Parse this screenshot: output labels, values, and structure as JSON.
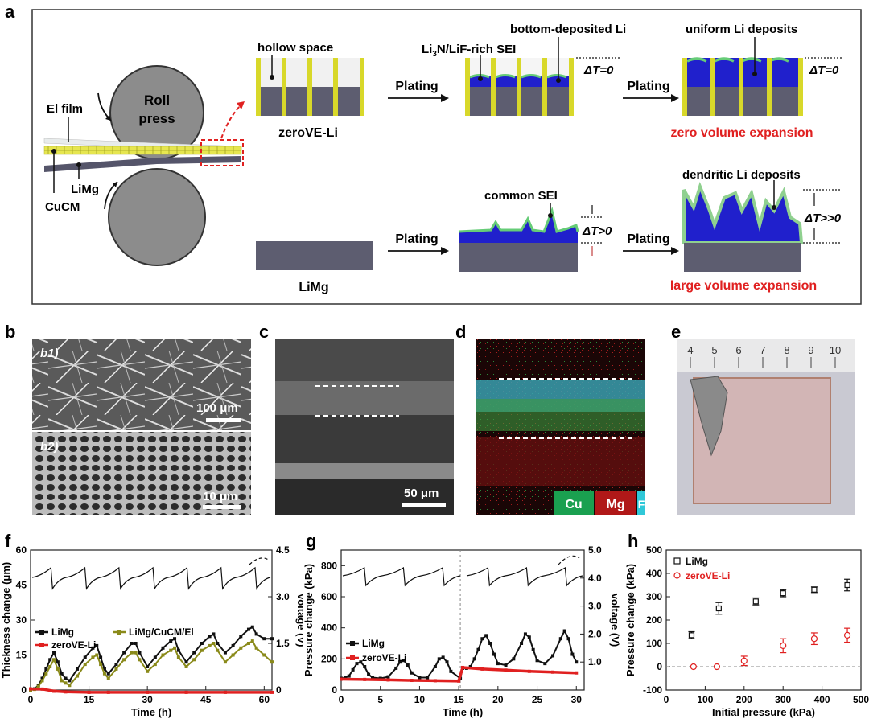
{
  "panel_labels": {
    "a": "a",
    "b": "b",
    "c": "c",
    "d": "d",
    "e": "e",
    "f": "f",
    "g": "g",
    "h": "h"
  },
  "schematic": {
    "roll_press": "Roll",
    "roll_press2": "press",
    "el_film": "El film",
    "limg_label": "LiMg",
    "cucm_label": "CuCM",
    "hollow_space": "hollow space",
    "zero_ve_li": "zeroVE-Li",
    "bottom_deposited": "bottom-deposited Li",
    "sei_rich": "Li",
    "sei_rich_sub1": "3",
    "sei_rich_mid": "N/LiF-rich SEI",
    "uniform_deposits": "uniform Li deposits",
    "delta_t0": "ΔT=0",
    "plating": "Plating",
    "zero_expansion": "zero volume expansion",
    "common_sei": "common SEI",
    "dendritic": "dendritic Li deposits",
    "delta_tpos": "ΔT>0",
    "delta_tbig": "ΔT>>0",
    "limg_bottom": "LiMg",
    "large_expansion": "large volume expansion"
  },
  "micrographs": {
    "b1": "b1)",
    "b2": "b2)",
    "scale_b1": "100 μm",
    "scale_b2": "10 μm",
    "scale_c": "50 μm",
    "legend_cu": "Cu",
    "legend_mg": "Mg",
    "legend_f": "F",
    "ruler_ticks": [
      "4",
      "5",
      "6",
      "7",
      "8",
      "9",
      "10"
    ]
  },
  "chart_data": [
    {
      "panel": "f",
      "type": "line",
      "xlabel": "Time (h)",
      "ylabel": "Thickness change (μm)",
      "y2label": "Voltage (V)",
      "xlim": [
        0,
        62
      ],
      "ylim": [
        0,
        60
      ],
      "y2lim": [
        0,
        4.5
      ],
      "xticks": [
        "0",
        "15",
        "30",
        "45",
        "60"
      ],
      "yticks": [
        "0",
        "15",
        "30",
        "45",
        "60"
      ],
      "y2ticks": [
        "0",
        "1.5",
        "3.0",
        "4.5"
      ],
      "series": [
        {
          "name": "LiMg",
          "color": "#111111",
          "x": [
            0,
            1,
            2,
            3,
            4,
            5,
            6,
            7,
            8,
            9,
            10,
            12,
            14,
            16,
            17,
            18,
            19,
            20,
            22,
            24,
            26,
            27,
            28,
            30,
            32,
            34,
            36,
            37,
            38,
            40,
            42,
            44,
            46,
            47,
            48,
            50,
            52,
            54,
            56,
            57,
            58,
            60,
            62
          ],
          "y": [
            0,
            0.5,
            2,
            5,
            9,
            13,
            16,
            12,
            7,
            5,
            4,
            9,
            14,
            18,
            19,
            14,
            9,
            7,
            11,
            16,
            20,
            20,
            16,
            10,
            14,
            18,
            21,
            22,
            17,
            12,
            16,
            20,
            23,
            24,
            20,
            16,
            19,
            23,
            26,
            27,
            24,
            22,
            22
          ]
        },
        {
          "name": "LiMg/CuCM/El",
          "color": "#8a8a1a",
          "x": [
            0,
            1,
            2,
            3,
            4,
            5,
            6,
            7,
            8,
            9,
            10,
            12,
            14,
            16,
            17,
            18,
            19,
            20,
            22,
            24,
            26,
            27,
            28,
            30,
            32,
            34,
            36,
            37,
            38,
            40,
            42,
            44,
            46,
            47,
            48,
            50,
            52,
            54,
            56,
            57,
            58,
            60,
            62
          ],
          "y": [
            0,
            0.3,
            1.5,
            4,
            7,
            10,
            13,
            9,
            4,
            3,
            2,
            6,
            11,
            14,
            15,
            11,
            7,
            5,
            9,
            13,
            16,
            16,
            13,
            8,
            11,
            15,
            17,
            18,
            14,
            10,
            13,
            17,
            19,
            20,
            17,
            12,
            15,
            18,
            20,
            21,
            18,
            15,
            12
          ]
        },
        {
          "name": "zeroVE-Li",
          "color": "#e02020",
          "x": [
            0,
            3,
            6,
            9,
            15,
            20,
            30,
            40,
            50,
            62
          ],
          "y": [
            0.5,
            0.4,
            -0.5,
            -0.8,
            -1,
            -1,
            -1,
            -1,
            -1,
            -1
          ]
        }
      ]
    },
    {
      "panel": "g",
      "type": "line",
      "xlabel": "Time (h)",
      "ylabel": "Pressure change (kPa)",
      "y2label": "voltage (V)",
      "xlim": [
        0,
        31
      ],
      "ylim": [
        0,
        900
      ],
      "y2lim": [
        0,
        5
      ],
      "xticks": [
        "0",
        "5",
        "10",
        "15",
        "20",
        "25",
        "30"
      ],
      "yticks": [
        "0",
        "200",
        "400",
        "600",
        "800"
      ],
      "y2ticks": [
        "1.0",
        "2.0",
        "3.0",
        "4.0",
        "5.0"
      ],
      "series": [
        {
          "name": "LiMg",
          "color": "#111111",
          "x": [
            0,
            0.5,
            1,
            1.5,
            2,
            2.5,
            3,
            3.5,
            4,
            5,
            6,
            7,
            7.5,
            8,
            8.5,
            9,
            10,
            11,
            12,
            12.5,
            13,
            13.5,
            14,
            15.2,
            15.5,
            16,
            16.5,
            17,
            17.5,
            18,
            18.5,
            19,
            19.5,
            20,
            21,
            22,
            23,
            23.5,
            24,
            24.5,
            25,
            26,
            27,
            28,
            28.5,
            29,
            29.5,
            30
          ],
          "y": [
            75,
            78,
            90,
            130,
            170,
            180,
            150,
            100,
            80,
            75,
            85,
            140,
            180,
            190,
            160,
            110,
            80,
            80,
            150,
            200,
            210,
            180,
            120,
            75,
            140,
            140,
            150,
            200,
            260,
            330,
            350,
            300,
            230,
            170,
            160,
            200,
            300,
            360,
            340,
            260,
            190,
            170,
            220,
            330,
            380,
            330,
            230,
            180
          ]
        },
        {
          "name": "zeroVE-Li",
          "color": "#e02020",
          "x": [
            0,
            3,
            6,
            9,
            12,
            15,
            15.5,
            18,
            21,
            24,
            27,
            30
          ],
          "y": [
            70,
            68,
            65,
            62,
            60,
            58,
            145,
            135,
            128,
            120,
            115,
            110
          ]
        }
      ]
    },
    {
      "panel": "h",
      "type": "scatter",
      "xlabel": "Initial pressure (kPa)",
      "ylabel": "Pressure change (kPa)",
      "xlim": [
        0,
        500
      ],
      "ylim": [
        -100,
        500
      ],
      "xticks": [
        "0",
        "100",
        "200",
        "300",
        "400",
        "500"
      ],
      "yticks": [
        "-100",
        "0",
        "100",
        "200",
        "300",
        "400",
        "500"
      ],
      "series": [
        {
          "name": "LiMg",
          "color": "#111111",
          "marker": "square",
          "x": [
            65,
            135,
            230,
            300,
            380,
            465
          ],
          "y": [
            135,
            250,
            280,
            315,
            330,
            350
          ],
          "err": [
            15,
            25,
            15,
            15,
            12,
            25
          ]
        },
        {
          "name": "zeroVE-Li",
          "color": "#e02020",
          "marker": "circle",
          "x": [
            70,
            130,
            200,
            300,
            380,
            465
          ],
          "y": [
            0,
            0,
            25,
            90,
            120,
            135
          ],
          "err": [
            0,
            0,
            20,
            30,
            25,
            30
          ]
        }
      ]
    }
  ]
}
